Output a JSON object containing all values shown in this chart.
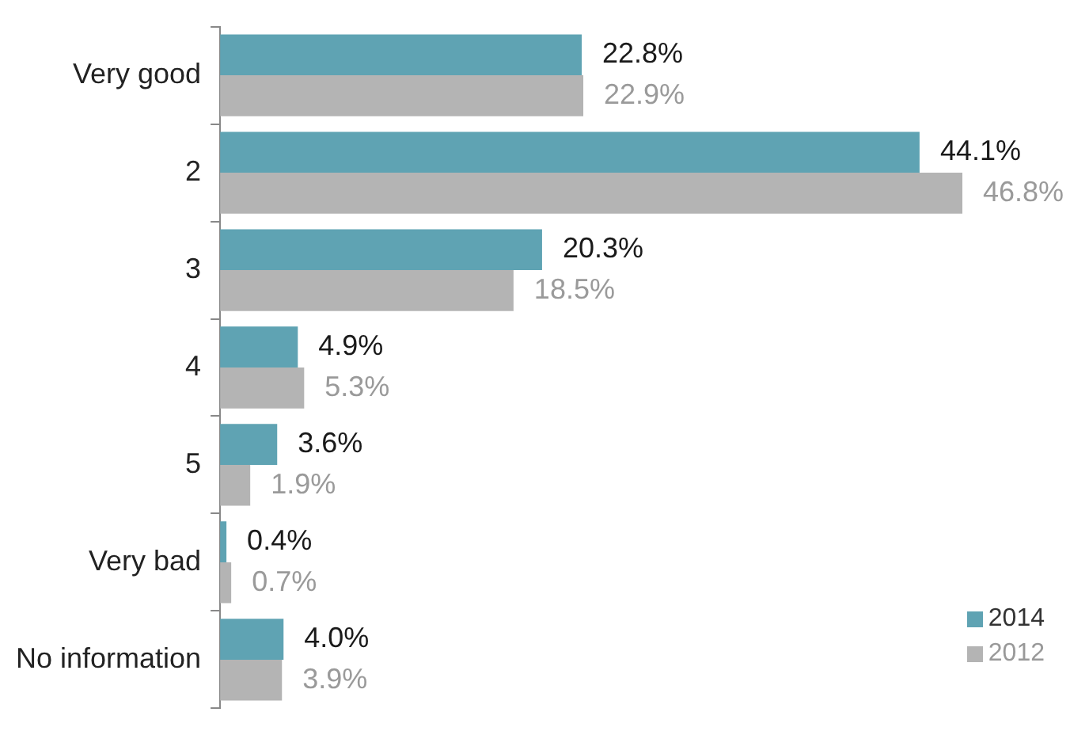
{
  "chart_data": {
    "type": "bar",
    "orientation": "horizontal",
    "categories": [
      "Very good",
      "2",
      "3",
      "4",
      "5",
      "Very bad",
      "No information"
    ],
    "series": [
      {
        "name": "2014",
        "color": "#5fa3b3",
        "values": [
          22.8,
          44.1,
          20.3,
          4.9,
          3.6,
          0.4,
          4.0
        ],
        "value_labels": [
          "22.8%",
          "44.1%",
          "20.3%",
          "4.9%",
          "3.6%",
          "0.4%",
          "4.0%"
        ]
      },
      {
        "name": "2012",
        "color": "#b4b4b4",
        "values": [
          22.9,
          46.8,
          18.5,
          5.3,
          1.9,
          0.7,
          3.9
        ],
        "value_labels": [
          "22.9%",
          "46.8%",
          "18.5%",
          "5.3%",
          "1.9%",
          "0.7%",
          "3.9%"
        ]
      }
    ],
    "legend": "bottom right"
  }
}
